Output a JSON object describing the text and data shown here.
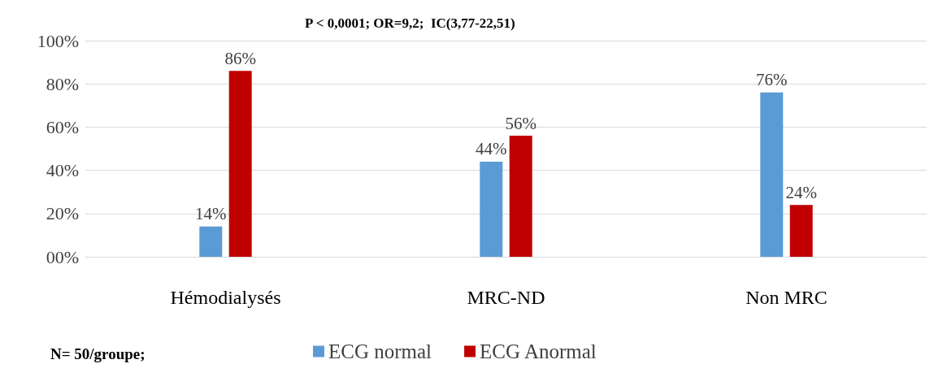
{
  "chart_data": {
    "type": "bar",
    "categories": [
      "Hémodialysés",
      "MRC-ND",
      "Non MRC"
    ],
    "series": [
      {
        "name": "ECG normal",
        "color": "#5b9bd5",
        "values": [
          14,
          44,
          76
        ],
        "value_labels": [
          "14%",
          "44%",
          "76%"
        ]
      },
      {
        "name": "ECG Anormal",
        "color": "#c00000",
        "values": [
          86,
          56,
          24
        ],
        "value_labels": [
          "86%",
          "56%",
          "24%"
        ]
      }
    ],
    "ylim": [
      0,
      100
    ],
    "yticks": [
      {
        "value": 0,
        "label": "00%"
      },
      {
        "value": 20,
        "label": "20%"
      },
      {
        "value": 40,
        "label": "40%"
      },
      {
        "value": 60,
        "label": "60%"
      },
      {
        "value": 80,
        "label": "80%"
      },
      {
        "value": 100,
        "label": "100%"
      }
    ],
    "annotations": [
      "P < 0,0001; OR=9,2;  IC(3,77-22,51)",
      "N= 50/groupe;"
    ],
    "grid": "y",
    "legend": "bottom"
  }
}
